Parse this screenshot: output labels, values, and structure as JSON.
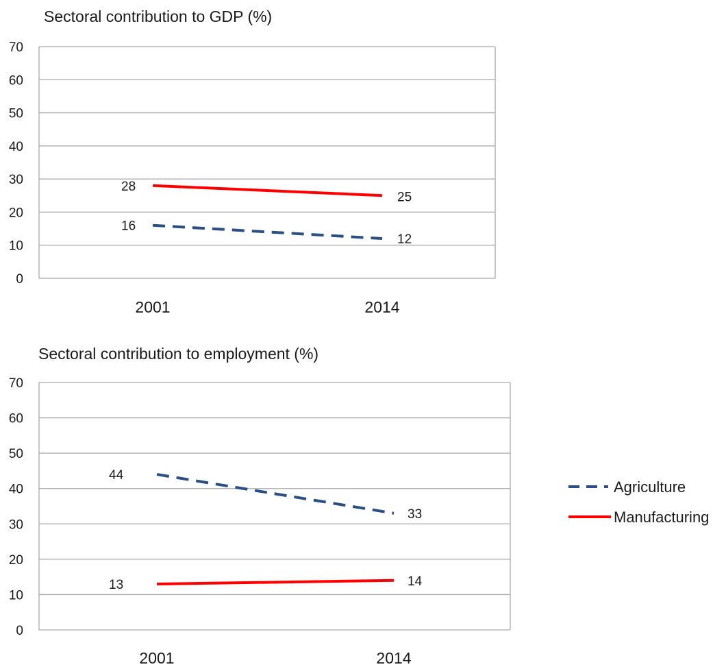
{
  "chart_data": [
    {
      "type": "line",
      "title": "Sectoral contribution to GDP (%)",
      "categories": [
        "2001",
        "2014"
      ],
      "ylim": [
        0,
        70
      ],
      "yticks": [
        "0",
        "10",
        "20",
        "30",
        "40",
        "50",
        "60",
        "70"
      ],
      "grid": true,
      "series": [
        {
          "name": "Agriculture",
          "values": [
            16,
            12
          ],
          "labels": [
            "16",
            "12"
          ],
          "color": "#284f86",
          "dashed": true
        },
        {
          "name": "Manufacturing",
          "values": [
            28,
            25
          ],
          "labels": [
            "28",
            "25"
          ],
          "color": "#ff0000",
          "dashed": false
        }
      ]
    },
    {
      "type": "line",
      "title": "Sectoral contribution to employment (%)",
      "categories": [
        "2001",
        "2014"
      ],
      "ylim": [
        0,
        70
      ],
      "yticks": [
        "0",
        "10",
        "20",
        "30",
        "40",
        "50",
        "60",
        "70"
      ],
      "grid": true,
      "series": [
        {
          "name": "Agriculture",
          "values": [
            44,
            33
          ],
          "labels": [
            "44",
            "33"
          ],
          "color": "#284f86",
          "dashed": true
        },
        {
          "name": "Manufacturing",
          "values": [
            13,
            14
          ],
          "labels": [
            "13",
            "14"
          ],
          "color": "#ff0000",
          "dashed": false
        }
      ]
    }
  ],
  "legend": {
    "position": "right",
    "items": [
      {
        "name": "Agriculture",
        "color": "#284f86",
        "dashed": true
      },
      {
        "name": "Manufacturing",
        "color": "#ff0000",
        "dashed": false
      }
    ]
  }
}
